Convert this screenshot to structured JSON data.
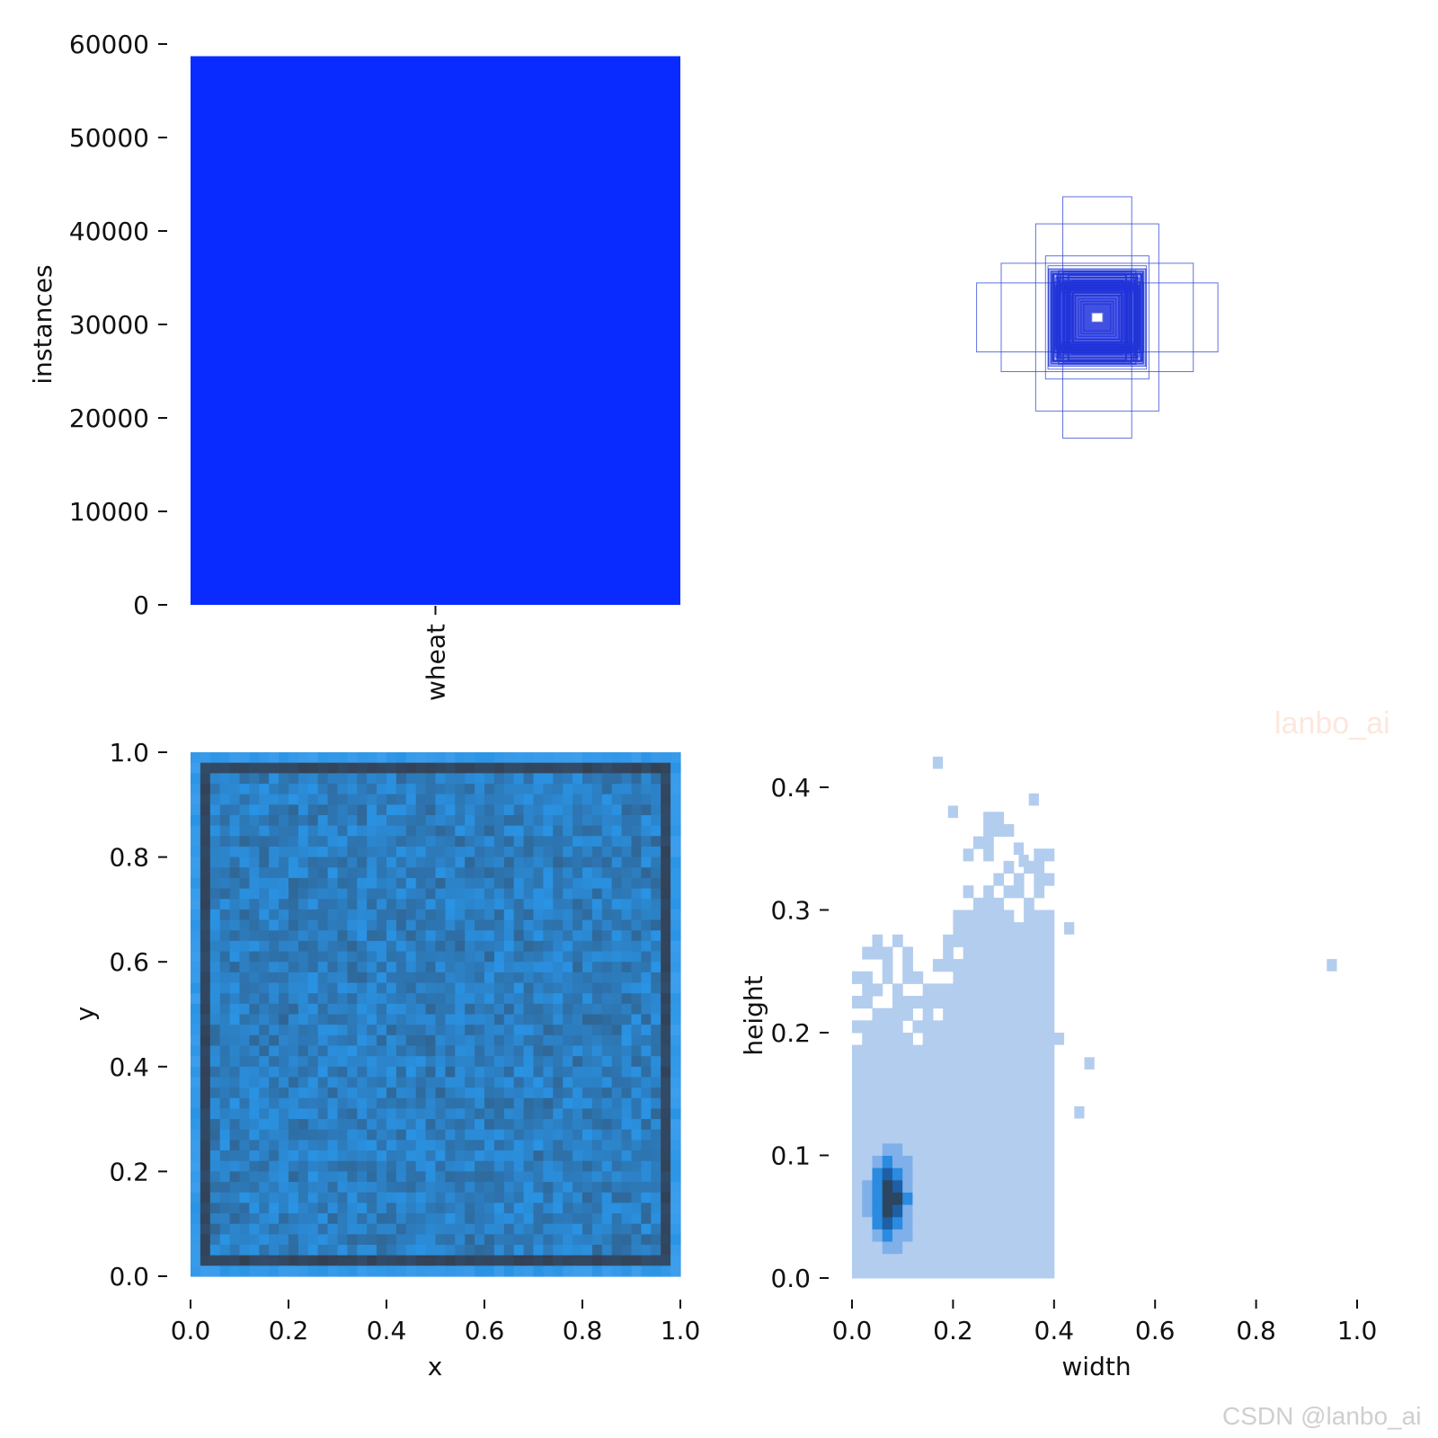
{
  "watermarks": {
    "author_mark": "lanbo_ai",
    "site_mark": "CSDN @lanbo_ai"
  },
  "chart_data": [
    {
      "type": "bar",
      "ylabel": "instances",
      "categories": [
        "wheat"
      ],
      "values": [
        58700
      ],
      "ylim": [
        0,
        60000
      ],
      "yticks": [
        0,
        10000,
        20000,
        30000,
        40000,
        50000,
        60000
      ],
      "colors": [
        "#0a2bff"
      ]
    },
    {
      "type": "boxes",
      "description": "",
      "center": [
        0.5,
        0.5
      ],
      "box_sizes": [
        [
          0.49,
          0.14
        ],
        [
          0.14,
          0.49
        ],
        [
          0.39,
          0.22
        ],
        [
          0.25,
          0.38
        ],
        [
          0.21,
          0.25
        ],
        [
          0.2,
          0.21
        ],
        [
          0.19,
          0.19
        ],
        [
          0.18,
          0.18
        ],
        [
          0.17,
          0.16
        ],
        [
          0.16,
          0.17
        ],
        [
          0.15,
          0.15
        ],
        [
          0.14,
          0.14
        ],
        [
          0.13,
          0.13
        ],
        [
          0.12,
          0.12
        ],
        [
          0.11,
          0.11
        ],
        [
          0.105,
          0.09
        ],
        [
          0.095,
          0.105
        ],
        [
          0.1,
          0.1
        ],
        [
          0.09,
          0.09
        ],
        [
          0.02,
          0.02
        ]
      ],
      "colors": [
        "#3a4fd6"
      ]
    },
    {
      "type": "heatmap",
      "xlabel": "x",
      "ylabel": "y",
      "xlim": [
        0,
        1
      ],
      "ylim": [
        0,
        1
      ],
      "xticks": [
        "0.0",
        "0.2",
        "0.4",
        "0.6",
        "0.8",
        "1.0"
      ],
      "yticks": [
        "0.0",
        "0.2",
        "0.4",
        "0.6",
        "0.8",
        "1.0"
      ],
      "bins": 50,
      "colors": [
        "#334155",
        "#2e6fa8",
        "#2a93e4",
        "#4aa6f2"
      ]
    },
    {
      "type": "heatmap",
      "xlabel": "width",
      "ylabel": "height",
      "xlim": [
        0,
        1
      ],
      "ylim": [
        0,
        0.43
      ],
      "xticks": [
        "0.0",
        "0.2",
        "0.4",
        "0.6",
        "0.8",
        "1.0"
      ],
      "yticks": [
        "0.0",
        "0.1",
        "0.2",
        "0.3",
        "0.4"
      ],
      "density_peak": [
        0.075,
        0.065
      ],
      "outliers": [
        [
          0.95,
          0.255
        ],
        [
          0.41,
          0.195
        ],
        [
          0.47,
          0.175
        ],
        [
          0.45,
          0.135
        ],
        [
          0.36,
          0.39
        ],
        [
          0.34,
          0.34
        ],
        [
          0.33,
          0.35
        ],
        [
          0.2,
          0.38
        ],
        [
          0.17,
          0.42
        ],
        [
          0.43,
          0.285
        ]
      ],
      "colors": [
        "#b3cdee",
        "#7fb0ea",
        "#2a8be0",
        "#1e5fa5",
        "#2c4660"
      ]
    }
  ]
}
